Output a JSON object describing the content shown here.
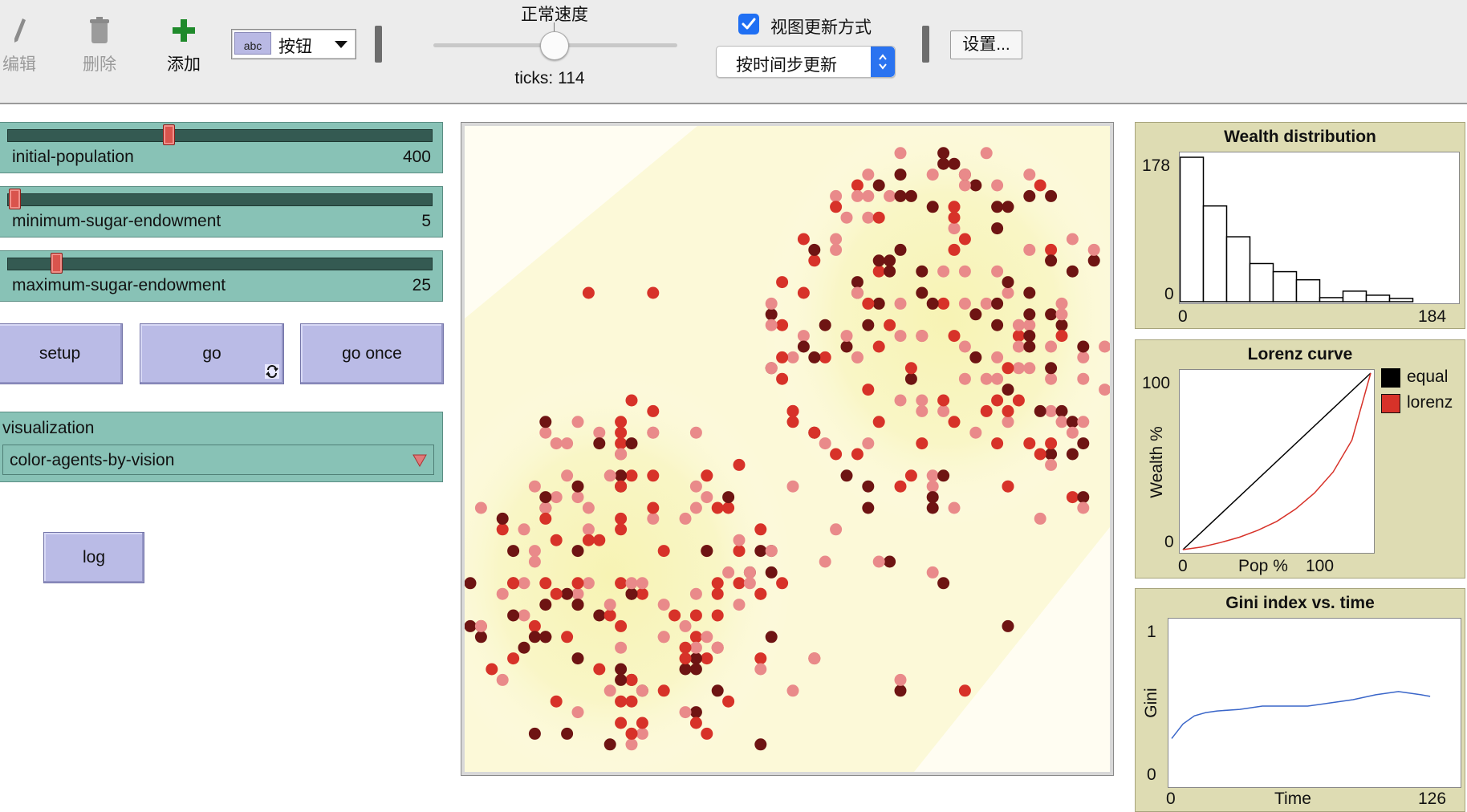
{
  "toolbar": {
    "edit_label": "编辑",
    "delete_label": "删除",
    "add_label": "添加",
    "widget_type": {
      "icon_text": "abc",
      "selected": "按钮"
    },
    "speed_label": "正常速度",
    "speed_level": 0.5,
    "ticks_text": "ticks: 114",
    "view_update_checkbox": {
      "label": "视图更新方式",
      "checked": true
    },
    "view_update_mode": "按时间步更新",
    "settings_label": "设置..."
  },
  "sliders": [
    {
      "name": "initial-population",
      "value": "400",
      "position": 0.33
    },
    {
      "name": "minimum-sugar-endowment",
      "value": "5",
      "position": 0.0
    },
    {
      "name": "maximum-sugar-endowment",
      "value": "25",
      "position": 0.1
    }
  ],
  "buttons": {
    "setup": "setup",
    "go": "go",
    "go_once": "go once",
    "log": "log"
  },
  "chooser": {
    "name": "visualization",
    "value": "color-agents-by-vision"
  },
  "plots": {
    "wealth": {
      "title": "Wealth distribution",
      "y_max_label": "178",
      "y_min_label": "0",
      "x_min_label": "0",
      "x_max_label": "184"
    },
    "lorenz": {
      "title": "Lorenz curve",
      "y_max_label": "100",
      "y_min_label": "0",
      "x_min_label": "0",
      "x_max_label": "100",
      "xlabel": "Pop %",
      "ylabel": "Wealth %",
      "legend": [
        {
          "name": "equal",
          "color": "#000000"
        },
        {
          "name": "lorenz",
          "color": "#d73229"
        }
      ]
    },
    "gini": {
      "title": "Gini index vs. time",
      "y_max_label": "1",
      "y_min_label": "0",
      "x_min_label": "0",
      "x_max_label": "126",
      "xlabel": "Time",
      "ylabel": "Gini"
    }
  },
  "chart_data": [
    {
      "type": "bar",
      "title": "Wealth distribution",
      "xlim": [
        0,
        184
      ],
      "ylim": [
        0,
        178
      ],
      "values": [
        178,
        118,
        80,
        47,
        37,
        27,
        5,
        13,
        8,
        4
      ]
    },
    {
      "type": "line",
      "title": "Lorenz curve",
      "xlabel": "Pop %",
      "ylabel": "Wealth %",
      "xlim": [
        0,
        100
      ],
      "ylim": [
        0,
        100
      ],
      "series": [
        {
          "name": "equal",
          "color": "#000000",
          "x": [
            0,
            100
          ],
          "y": [
            0,
            100
          ]
        },
        {
          "name": "lorenz",
          "color": "#d73229",
          "x": [
            0,
            10,
            20,
            30,
            40,
            50,
            60,
            70,
            80,
            90,
            100
          ],
          "y": [
            0,
            1.5,
            4,
            7,
            11,
            16,
            23,
            32,
            44,
            62,
            100
          ]
        }
      ]
    },
    {
      "type": "line",
      "title": "Gini index vs. time",
      "xlabel": "Time",
      "ylabel": "Gini",
      "xlim": [
        0,
        126
      ],
      "ylim": [
        0,
        1
      ],
      "series": [
        {
          "name": "gini",
          "color": "#3a66c9",
          "x": [
            0,
            5,
            10,
            15,
            20,
            30,
            40,
            50,
            60,
            70,
            80,
            90,
            100,
            105,
            110,
            114
          ],
          "y": [
            0.28,
            0.37,
            0.42,
            0.44,
            0.45,
            0.46,
            0.48,
            0.48,
            0.48,
            0.5,
            0.52,
            0.55,
            0.57,
            0.56,
            0.55,
            0.54
          ]
        }
      ]
    }
  ],
  "colors": {
    "toolbar_bg": "#ececec",
    "slider_bg": "#88c2b6",
    "button_bg": "#babbe6",
    "plot_bg": "#dedcb3",
    "agent_light": "#e98a8a",
    "agent_mid": "#d73229",
    "agent_dark": "#6e1413",
    "sugar_high": "#f5f0a0",
    "sugar_low": "#fffdf2"
  }
}
